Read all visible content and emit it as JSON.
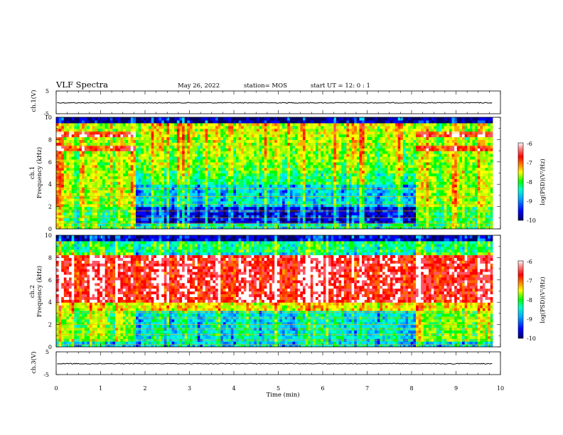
{
  "header": {
    "title": "VLF Spectra",
    "date": "May 26, 2022",
    "station": "station= MOS",
    "start": "start  UT =   12: 0  : 1"
  },
  "colorbar": {
    "label": "log(PSD)(V²/Hz)",
    "ticks": [
      "-6",
      "-7",
      "-8",
      "-9",
      "-10"
    ]
  },
  "chart_data": [
    {
      "type": "line",
      "panel": "ch1-waveform",
      "ylabel": "ch.1(V)",
      "ylim": [
        -5,
        5
      ],
      "y_ticks": [
        "5",
        "-5"
      ],
      "xlim": [
        0,
        10
      ],
      "level": -0.2
    },
    {
      "type": "heatmap",
      "panel": "ch1-spectrogram",
      "ylabel_line1": "ch.1",
      "ylabel_line2": "Frequency (kHz)",
      "ylim": [
        0,
        10
      ],
      "y_ticks": [
        "0",
        "2",
        "4",
        "6",
        "8",
        "10"
      ],
      "xlim": [
        0,
        10
      ],
      "data_end_min": 9.83,
      "quiet_interval_min": [
        1.82,
        8.12
      ],
      "color_scale": [
        -10,
        -6
      ],
      "colors": [
        "#000066",
        "#0000ff",
        "#00aaff",
        "#00ffcc",
        "#00ff00",
        "#aaff00",
        "#ffff00",
        "#ff6600",
        "#ff0000",
        "#ffffff"
      ]
    },
    {
      "type": "heatmap",
      "panel": "ch2-spectrogram",
      "ylabel_line1": "ch.2",
      "ylabel_line2": "Frequency (kHz)",
      "ylim": [
        0,
        10
      ],
      "y_ticks": [
        "0",
        "2",
        "4",
        "6",
        "8",
        "10"
      ],
      "xlim": [
        0,
        10
      ],
      "data_end_min": 9.83,
      "color_scale": [
        -10,
        -6
      ]
    },
    {
      "type": "line",
      "panel": "ch3-waveform",
      "ylabel": "ch.3(V)",
      "ylim": [
        -5,
        5
      ],
      "y_ticks": [
        "5",
        "-5"
      ],
      "xlim": [
        0,
        10
      ],
      "level": -0.2
    }
  ],
  "x_axis": {
    "label": "Time (min)",
    "ticks": [
      "0",
      "1",
      "2",
      "3",
      "4",
      "5",
      "6",
      "7",
      "8",
      "9",
      "10"
    ]
  }
}
